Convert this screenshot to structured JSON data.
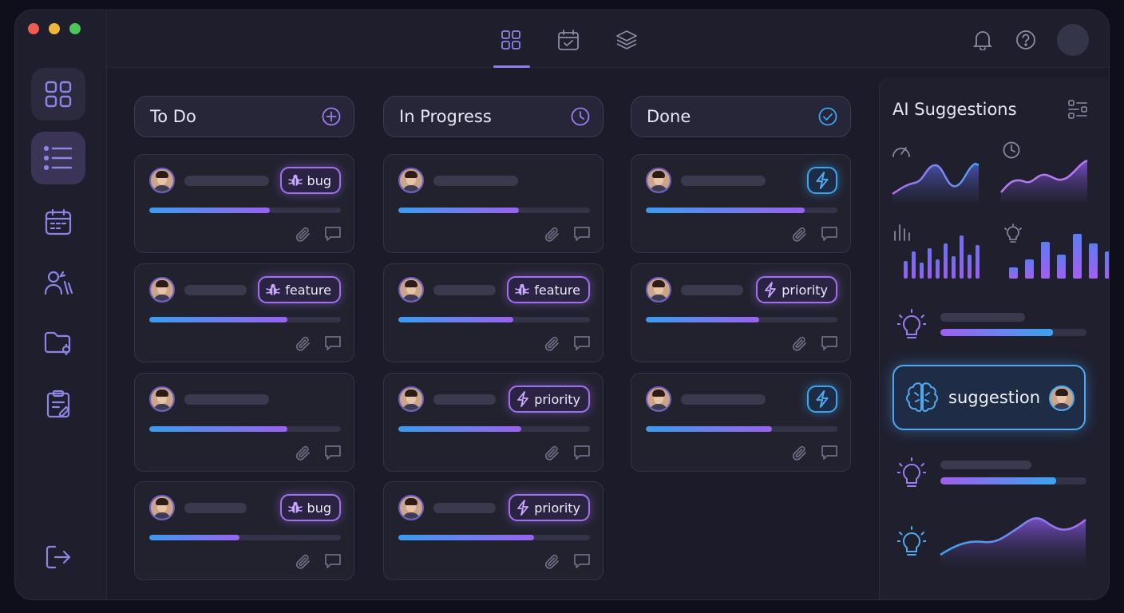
{
  "window": {
    "dots": [
      "#ee5c55",
      "#f2b53c",
      "#4cc757"
    ]
  },
  "topbar": {
    "tabs": [
      {
        "icon": "grid-icon",
        "active": true
      },
      {
        "icon": "calendar-check-icon",
        "active": false
      },
      {
        "icon": "layers-icon",
        "active": false
      }
    ],
    "right_icons": [
      "bell-icon",
      "help-icon",
      "avatar"
    ]
  },
  "sidebar": {
    "items": [
      "grid-icon",
      "list-icon",
      "calendar-icon",
      "users-icon",
      "folder-icon",
      "clipboard-icon"
    ],
    "bottom": "logout-icon"
  },
  "board": {
    "columns": [
      {
        "title": "To Do",
        "icon": "plus-circle-icon",
        "cards": [
          {
            "badge": "bug",
            "badge_icon": "bug-icon",
            "progress": 0.63,
            "line": 106
          },
          {
            "badge": "feature",
            "badge_icon": "bug-icon",
            "progress": 0.72,
            "line": 78
          },
          {
            "badge": "",
            "badge_icon": "",
            "progress": 0.72,
            "line": 106
          },
          {
            "badge": "bug",
            "badge_icon": "bug-icon",
            "progress": 0.47,
            "line": 78
          }
        ]
      },
      {
        "title": "In Progress",
        "icon": "clock-icon",
        "cards": [
          {
            "badge": "",
            "badge_icon": "",
            "progress": 0.63,
            "line": 106
          },
          {
            "badge": "feature",
            "badge_icon": "bug-icon",
            "progress": 0.6,
            "line": 78
          },
          {
            "badge": "priority",
            "badge_icon": "bolt-icon",
            "progress": 0.64,
            "line": 78
          },
          {
            "badge": "priority",
            "badge_icon": "bolt-icon",
            "progress": 0.71,
            "line": 78
          }
        ]
      },
      {
        "title": "Done",
        "icon": "check-circle-icon",
        "cards": [
          {
            "badge": "",
            "badge_icon": "bolt-icon",
            "progress": 0.83,
            "line": 106
          },
          {
            "badge": "priority",
            "badge_icon": "bolt-icon",
            "progress": 0.59,
            "line": 78
          },
          {
            "badge": "",
            "badge_icon": "bolt-icon",
            "progress": 0.66,
            "line": 106
          }
        ]
      }
    ]
  },
  "ai": {
    "title": "AI Suggestions",
    "filter_icon": "sliders-icon",
    "suggestion": {
      "label": "suggestion",
      "icon": "brain-icon"
    },
    "rows": [
      {
        "icon": "lightbulb-icon",
        "progress": 0.77
      },
      {
        "icon": "lightbulb-icon",
        "progress": 0.79
      }
    ]
  }
}
